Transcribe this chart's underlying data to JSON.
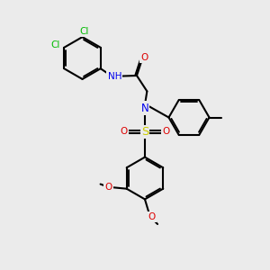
{
  "bg_color": "#ebebeb",
  "bw": 1.5,
  "dbo": 0.055,
  "fs": 7.5,
  "atom_colors": {
    "N": "#0000ee",
    "O": "#dd0000",
    "S": "#cccc00",
    "Cl": "#00bb00",
    "C": "#000000"
  },
  "xlim": [
    0,
    10
  ],
  "ylim": [
    0,
    10
  ]
}
